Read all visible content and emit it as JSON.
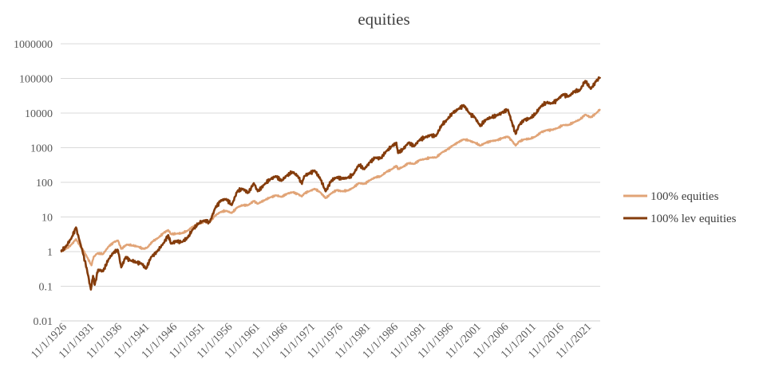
{
  "chart_data": {
    "type": "line",
    "title": "equities",
    "xlabel": "",
    "ylabel": "",
    "y_scale": "log",
    "ylim": [
      0.01,
      1000000
    ],
    "y_ticks": [
      "0.01",
      "0.1",
      "1",
      "10",
      "100",
      "1000",
      "10000",
      "100000",
      "1000000"
    ],
    "x_range": [
      1926.83,
      2024.5
    ],
    "x_ticks": [
      "11/1/1926",
      "11/1/1931",
      "11/1/1936",
      "11/1/1941",
      "11/1/1946",
      "11/1/1951",
      "11/1/1956",
      "11/1/1961",
      "11/1/1966",
      "11/1/1971",
      "11/1/1976",
      "11/1/1981",
      "11/1/1986",
      "11/1/1991",
      "11/1/1996",
      "11/1/2001",
      "11/1/2006",
      "11/1/2011",
      "11/1/2016",
      "11/1/2021"
    ],
    "grid": "horizontal",
    "legend_position": "right",
    "series": [
      {
        "name": "100% equities",
        "color": "#E1A477",
        "points": [
          [
            1926.83,
            1.0
          ],
          [
            1927.8,
            1.2
          ],
          [
            1928.8,
            1.6
          ],
          [
            1929.6,
            2.3
          ],
          [
            1930.2,
            1.6
          ],
          [
            1930.8,
            1.2
          ],
          [
            1931.6,
            0.7
          ],
          [
            1932.4,
            0.4
          ],
          [
            1932.8,
            0.7
          ],
          [
            1933.5,
            0.9
          ],
          [
            1934.5,
            0.85
          ],
          [
            1935.5,
            1.4
          ],
          [
            1936.5,
            1.9
          ],
          [
            1937.2,
            2.1
          ],
          [
            1937.8,
            1.2
          ],
          [
            1938.8,
            1.6
          ],
          [
            1939.8,
            1.5
          ],
          [
            1940.8,
            1.4
          ],
          [
            1941.8,
            1.2
          ],
          [
            1942.5,
            1.3
          ],
          [
            1943.5,
            2.0
          ],
          [
            1944.5,
            2.5
          ],
          [
            1945.5,
            3.5
          ],
          [
            1946.3,
            4.2
          ],
          [
            1946.8,
            3.2
          ],
          [
            1947.8,
            3.3
          ],
          [
            1948.8,
            3.4
          ],
          [
            1949.8,
            4.0
          ],
          [
            1950.8,
            5.3
          ],
          [
            1951.8,
            6.3
          ],
          [
            1952.8,
            7.3
          ],
          [
            1953.8,
            7.2
          ],
          [
            1954.8,
            11.0
          ],
          [
            1955.8,
            14.0
          ],
          [
            1956.8,
            15.0
          ],
          [
            1957.8,
            13.0
          ],
          [
            1958.8,
            19.0
          ],
          [
            1959.8,
            22.0
          ],
          [
            1960.8,
            22.0
          ],
          [
            1961.8,
            29.0
          ],
          [
            1962.5,
            24.0
          ],
          [
            1963.8,
            31.0
          ],
          [
            1964.8,
            37.0
          ],
          [
            1965.8,
            42.0
          ],
          [
            1966.8,
            38.0
          ],
          [
            1967.8,
            47.0
          ],
          [
            1968.8,
            52.0
          ],
          [
            1969.8,
            46.0
          ],
          [
            1970.5,
            39.0
          ],
          [
            1970.9,
            48.0
          ],
          [
            1971.8,
            55.0
          ],
          [
            1972.8,
            65.0
          ],
          [
            1973.8,
            52.0
          ],
          [
            1974.8,
            35.0
          ],
          [
            1975.8,
            48.0
          ],
          [
            1976.8,
            60.0
          ],
          [
            1977.8,
            55.0
          ],
          [
            1978.8,
            58.0
          ],
          [
            1979.8,
            70.0
          ],
          [
            1980.8,
            95.0
          ],
          [
            1981.8,
            90.0
          ],
          [
            1982.8,
            115.0
          ],
          [
            1983.8,
            140.0
          ],
          [
            1984.8,
            150.0
          ],
          [
            1985.8,
            200.0
          ],
          [
            1986.8,
            240.0
          ],
          [
            1987.6,
            300.0
          ],
          [
            1987.9,
            240.0
          ],
          [
            1988.8,
            280.0
          ],
          [
            1989.8,
            360.0
          ],
          [
            1990.8,
            340.0
          ],
          [
            1991.8,
            440.0
          ],
          [
            1992.8,
            470.0
          ],
          [
            1993.8,
            520.0
          ],
          [
            1994.8,
            520.0
          ],
          [
            1995.8,
            720.0
          ],
          [
            1996.8,
            880.0
          ],
          [
            1997.8,
            1150.0
          ],
          [
            1998.8,
            1450.0
          ],
          [
            1999.8,
            1750.0
          ],
          [
            2000.8,
            1600.0
          ],
          [
            2001.8,
            1400.0
          ],
          [
            2002.8,
            1150.0
          ],
          [
            2003.8,
            1400.0
          ],
          [
            2004.8,
            1550.0
          ],
          [
            2005.8,
            1650.0
          ],
          [
            2006.8,
            1900.0
          ],
          [
            2007.8,
            2100.0
          ],
          [
            2008.5,
            1600.0
          ],
          [
            2009.2,
            1150.0
          ],
          [
            2009.8,
            1500.0
          ],
          [
            2010.8,
            1750.0
          ],
          [
            2011.8,
            1800.0
          ],
          [
            2012.8,
            2100.0
          ],
          [
            2013.8,
            2800.0
          ],
          [
            2014.8,
            3200.0
          ],
          [
            2015.8,
            3300.0
          ],
          [
            2016.8,
            3700.0
          ],
          [
            2017.8,
            4500.0
          ],
          [
            2018.8,
            4500.0
          ],
          [
            2019.8,
            5500.0
          ],
          [
            2020.8,
            6500.0
          ],
          [
            2021.8,
            9000.0
          ],
          [
            2022.8,
            7500.0
          ],
          [
            2023.8,
            10000.0
          ],
          [
            2024.5,
            13000.0
          ]
        ]
      },
      {
        "name": "100% lev equities",
        "color": "#843C0C",
        "points": [
          [
            1926.83,
            1.0
          ],
          [
            1927.8,
            1.4
          ],
          [
            1928.8,
            2.5
          ],
          [
            1929.6,
            5.0
          ],
          [
            1930.2,
            2.2
          ],
          [
            1930.8,
            1.0
          ],
          [
            1931.6,
            0.3
          ],
          [
            1932.3,
            0.08
          ],
          [
            1932.7,
            0.2
          ],
          [
            1933.0,
            0.11
          ],
          [
            1933.6,
            0.3
          ],
          [
            1934.5,
            0.27
          ],
          [
            1935.5,
            0.6
          ],
          [
            1936.5,
            1.0
          ],
          [
            1937.2,
            1.1
          ],
          [
            1937.8,
            0.35
          ],
          [
            1938.6,
            0.7
          ],
          [
            1939.5,
            0.55
          ],
          [
            1940.5,
            0.5
          ],
          [
            1941.5,
            0.45
          ],
          [
            1942.3,
            0.32
          ],
          [
            1943.2,
            0.7
          ],
          [
            1944.3,
            1.0
          ],
          [
            1945.5,
            1.8
          ],
          [
            1946.3,
            3.0
          ],
          [
            1946.8,
            1.7
          ],
          [
            1947.8,
            2.0
          ],
          [
            1948.8,
            1.9
          ],
          [
            1949.8,
            2.5
          ],
          [
            1950.8,
            4.5
          ],
          [
            1951.8,
            6.5
          ],
          [
            1952.8,
            8.0
          ],
          [
            1953.8,
            7.0
          ],
          [
            1954.8,
            18.0
          ],
          [
            1955.8,
            30.0
          ],
          [
            1956.8,
            33.0
          ],
          [
            1957.8,
            22.0
          ],
          [
            1958.8,
            55.0
          ],
          [
            1959.8,
            65.0
          ],
          [
            1960.8,
            50.0
          ],
          [
            1961.8,
            95.0
          ],
          [
            1962.5,
            55.0
          ],
          [
            1963.8,
            90.0
          ],
          [
            1964.8,
            125.0
          ],
          [
            1965.8,
            150.0
          ],
          [
            1966.8,
            110.0
          ],
          [
            1967.8,
            160.0
          ],
          [
            1968.8,
            200.0
          ],
          [
            1969.8,
            150.0
          ],
          [
            1970.5,
            90.0
          ],
          [
            1970.9,
            150.0
          ],
          [
            1971.8,
            180.0
          ],
          [
            1972.8,
            220.0
          ],
          [
            1973.8,
            130.0
          ],
          [
            1974.8,
            55.0
          ],
          [
            1975.8,
            110.0
          ],
          [
            1976.8,
            140.0
          ],
          [
            1977.8,
            130.0
          ],
          [
            1978.8,
            135.0
          ],
          [
            1979.8,
            170.0
          ],
          [
            1980.8,
            320.0
          ],
          [
            1981.8,
            240.0
          ],
          [
            1982.8,
            380.0
          ],
          [
            1983.8,
            520.0
          ],
          [
            1984.8,
            500.0
          ],
          [
            1985.8,
            800.0
          ],
          [
            1986.8,
            1100.0
          ],
          [
            1987.6,
            1400.0
          ],
          [
            1987.9,
            700.0
          ],
          [
            1988.8,
            900.0
          ],
          [
            1989.8,
            1400.0
          ],
          [
            1990.8,
            1100.0
          ],
          [
            1991.8,
            1700.0
          ],
          [
            1992.8,
            2000.0
          ],
          [
            1993.8,
            2300.0
          ],
          [
            1994.8,
            2200.0
          ],
          [
            1995.8,
            4500.0
          ],
          [
            1996.8,
            6500.0
          ],
          [
            1997.8,
            10000.0
          ],
          [
            1998.8,
            13000.0
          ],
          [
            1999.8,
            17000.0
          ],
          [
            2000.8,
            10000.0
          ],
          [
            2001.8,
            7500.0
          ],
          [
            2002.8,
            4200.0
          ],
          [
            2003.8,
            6500.0
          ],
          [
            2004.8,
            7500.0
          ],
          [
            2005.8,
            8500.0
          ],
          [
            2006.8,
            10500.0
          ],
          [
            2007.8,
            12500.0
          ],
          [
            2008.5,
            5500.0
          ],
          [
            2009.2,
            2500.0
          ],
          [
            2009.8,
            4500.0
          ],
          [
            2010.8,
            6500.0
          ],
          [
            2011.8,
            7000.0
          ],
          [
            2012.8,
            9500.0
          ],
          [
            2013.8,
            16000.0
          ],
          [
            2014.8,
            20000.0
          ],
          [
            2015.8,
            19000.0
          ],
          [
            2016.8,
            25000.0
          ],
          [
            2017.8,
            35000.0
          ],
          [
            2018.8,
            30000.0
          ],
          [
            2019.8,
            42000.0
          ],
          [
            2020.8,
            45000.0
          ],
          [
            2021.8,
            85000.0
          ],
          [
            2022.8,
            50000.0
          ],
          [
            2023.8,
            85000.0
          ],
          [
            2024.5,
            110000.0
          ]
        ]
      }
    ]
  }
}
